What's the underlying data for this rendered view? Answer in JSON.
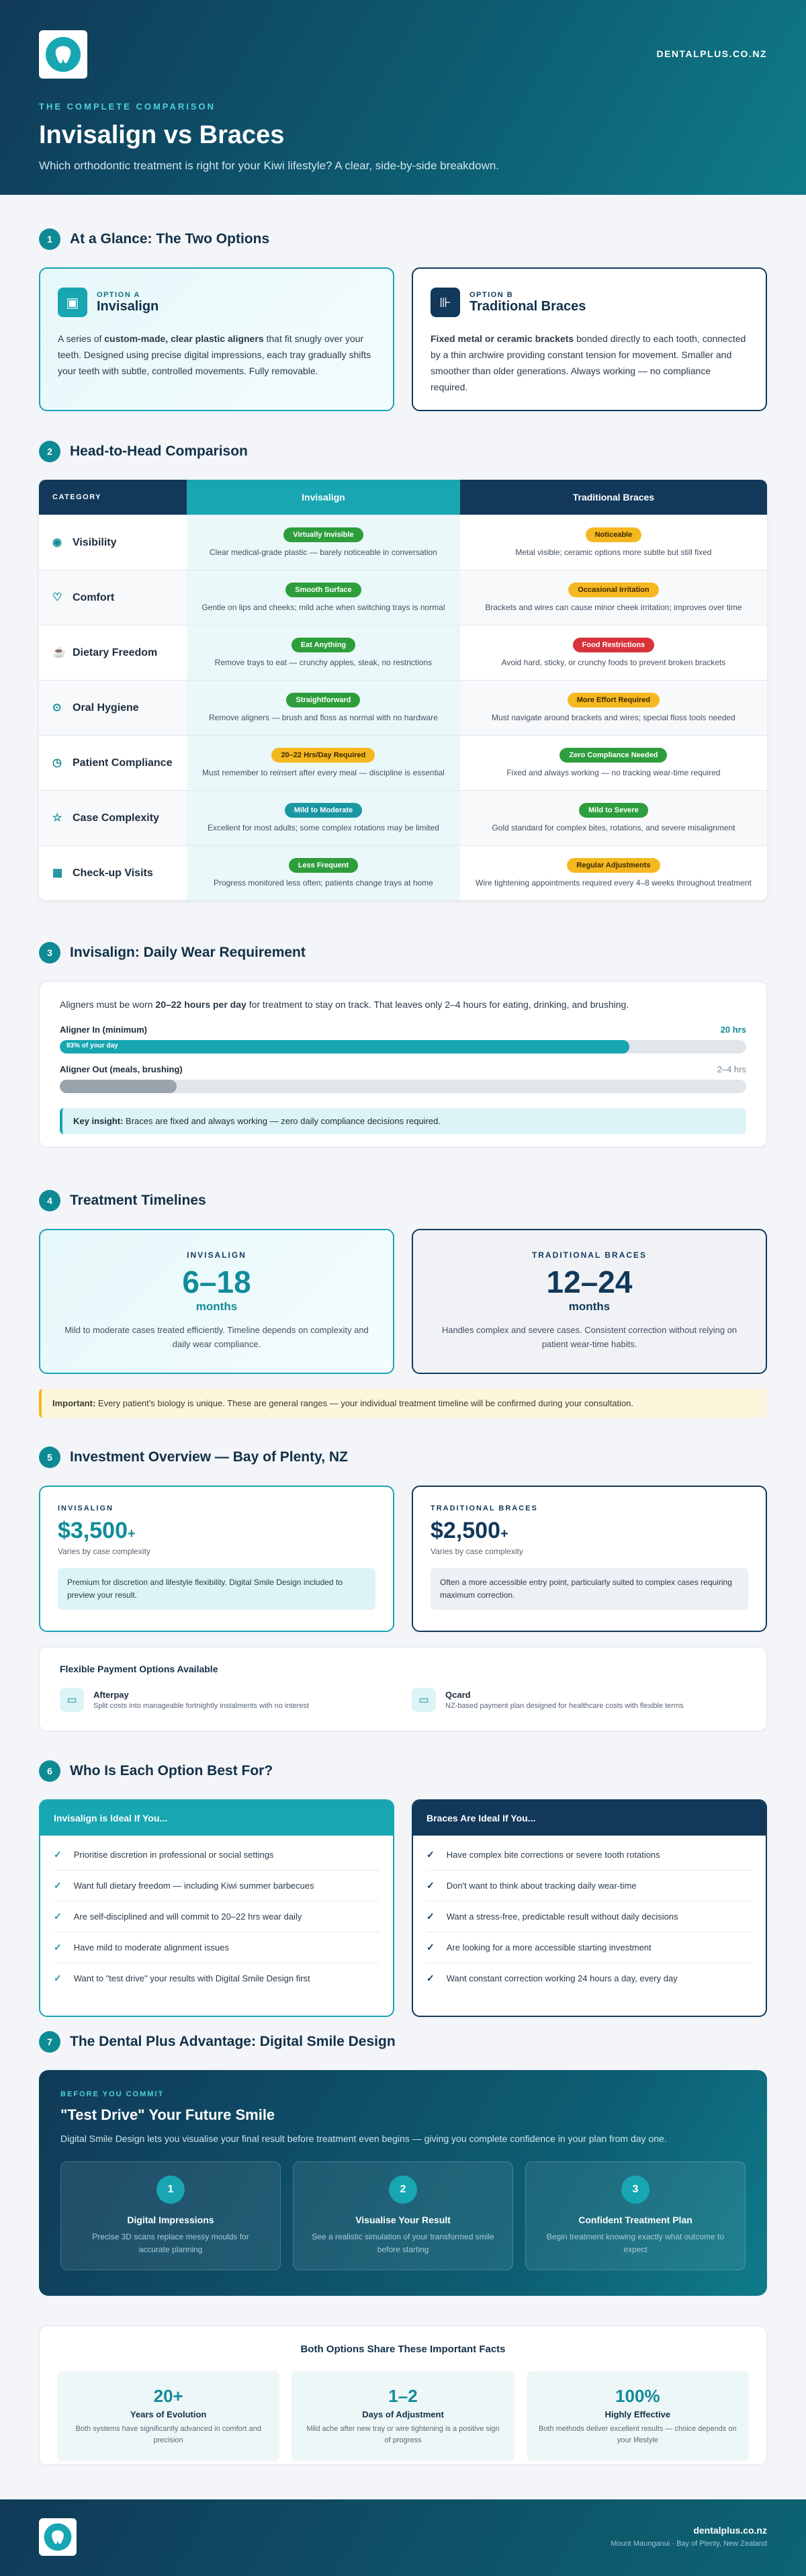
{
  "site": "DENTALPLUS.CO.NZ",
  "hero": {
    "eyebrow": "THE COMPLETE COMPARISON",
    "title": "Invisalign vs Braces",
    "subtitle": "Which orthodontic treatment is right for your Kiwi lifestyle? A clear, side-by-side breakdown."
  },
  "s1": {
    "num": "1",
    "title": "At a Glance: The Two Options",
    "a": {
      "opt": "OPTION A",
      "title": "Invisalign",
      "pre": "A series of ",
      "bold": "custom-made, clear plastic aligners",
      "post": " that fit snugly over your teeth. Designed using precise digital impressions, each tray gradually shifts your teeth with subtle, controlled movements. Fully removable."
    },
    "b": {
      "opt": "OPTION B",
      "title": "Traditional Braces",
      "bold": "Fixed metal or ceramic brackets",
      "post": " bonded directly to each tooth, connected by a thin archwire providing constant tension for movement. Smaller and smoother than older generations. Always working — no compliance required."
    }
  },
  "s2": {
    "num": "2",
    "title": "Head-to-Head Comparison",
    "h": [
      "CATEGORY",
      "Invisalign",
      "Traditional Braces"
    ],
    "rows": [
      {
        "label": "Visibility",
        "icon": "eye-icon",
        "a": {
          "pill": "Virtually Invisible",
          "c": "g",
          "t": "Clear medical-grade plastic — barely noticeable in conversation"
        },
        "b": {
          "pill": "Noticeable",
          "c": "y",
          "t": "Metal visible; ceramic options more subtle but still fixed"
        }
      },
      {
        "label": "Comfort",
        "icon": "heart-icon",
        "a": {
          "pill": "Smooth Surface",
          "c": "g",
          "t": "Gentle on lips and cheeks; mild ache when switching trays is normal"
        },
        "b": {
          "pill": "Occasional Irritation",
          "c": "y",
          "t": "Brackets and wires can cause minor cheek irritation; improves over time"
        }
      },
      {
        "label": "Dietary Freedom",
        "icon": "cup-icon",
        "a": {
          "pill": "Eat Anything",
          "c": "g",
          "t": "Remove trays to eat — crunchy apples, steak, no restrictions"
        },
        "b": {
          "pill": "Food Restrictions",
          "c": "r",
          "t": "Avoid hard, sticky, or crunchy foods to prevent broken brackets"
        }
      },
      {
        "label": "Oral Hygiene",
        "icon": "pin-icon",
        "a": {
          "pill": "Straightforward",
          "c": "g",
          "t": "Remove aligners — brush and floss as normal with no hardware"
        },
        "b": {
          "pill": "More Effort Required",
          "c": "y",
          "t": "Must navigate around brackets and wires; special floss tools needed"
        }
      },
      {
        "label": "Patient Compliance",
        "icon": "clock-icon",
        "a": {
          "pill": "20–22 Hrs/Day Required",
          "c": "y",
          "t": "Must remember to reinsert after every meal — discipline is essential"
        },
        "b": {
          "pill": "Zero Compliance Needed",
          "c": "g",
          "t": "Fixed and always working — no tracking wear-time required"
        }
      },
      {
        "label": "Case Complexity",
        "icon": "star-icon",
        "a": {
          "pill": "Mild to Moderate",
          "c": "t",
          "t": "Excellent for most adults; some complex rotations may be limited"
        },
        "b": {
          "pill": "Mild to Severe",
          "c": "g",
          "t": "Gold standard for complex bites, rotations, and severe misalignment"
        }
      },
      {
        "label": "Check-up Visits",
        "icon": "calendar-icon",
        "a": {
          "pill": "Less Frequent",
          "c": "g",
          "t": "Progress monitored less often; patients change trays at home"
        },
        "b": {
          "pill": "Regular Adjustments",
          "c": "y",
          "t": "Wire tightening appointments required every 4–8 weeks throughout treatment"
        }
      }
    ]
  },
  "s3": {
    "num": "3",
    "title": "Invisalign: Daily Wear Requirement",
    "intro_pre": "Aligners must be worn ",
    "intro_bold": "20–22 hours per day",
    "intro_post": " for treatment to stay on track. That leaves only 2–4 hours for eating, drinking, and brushing.",
    "in_label": "Aligner In (minimum)",
    "in_val": "20 hrs",
    "in_pct": 83,
    "in_text": "83% of your day",
    "out_label": "Aligner Out (meals, brushing)",
    "out_val": "2–4 hrs",
    "out_pct": 17,
    "ins_bold": "Key insight:",
    "ins_text": " Braces are fixed and always working — zero daily compliance decisions required."
  },
  "s4": {
    "num": "4",
    "title": "Treatment Timelines",
    "a": {
      "label": "INVISALIGN",
      "value": "6–18",
      "unit": "months",
      "text": "Mild to moderate cases treated efficiently. Timeline depends on complexity and daily wear compliance."
    },
    "b": {
      "label": "TRADITIONAL BRACES",
      "value": "12–24",
      "unit": "months",
      "text": "Handles complex and severe cases. Consistent correction without relying on patient wear-time habits."
    },
    "note_bold": "Important:",
    "note_text": " Every patient's biology is unique. These are general ranges — your individual treatment timeline will be confirmed during your consultation."
  },
  "s5": {
    "num": "5",
    "title": "Investment Overview — Bay of Plenty, NZ",
    "a": {
      "label": "INVISALIGN",
      "price": "$3,500",
      "plus": "+",
      "sub": "Varies by case complexity",
      "note": "Premium for discretion and lifestyle flexibility. Digital Smile Design included to preview your result."
    },
    "b": {
      "label": "TRADITIONAL BRACES",
      "price": "$2,500",
      "plus": "+",
      "sub": "Varies by case complexity",
      "note": "Often a more accessible entry point, particularly suited to complex cases requiring maximum correction."
    },
    "pay_title": "Flexible Payment Options Available",
    "pay": [
      {
        "name": "Afterpay",
        "text": "Split costs into manageable fortnightly instalments with no interest"
      },
      {
        "name": "Qcard",
        "text": "NZ-based payment plan designed for healthcare costs with flexible terms"
      }
    ]
  },
  "s6": {
    "num": "6",
    "title": "Who Is Each Option Best For?",
    "a": {
      "title": "Invisalign is Ideal If You...",
      "items": [
        "Prioritise discretion in professional or social settings",
        "Want full dietary freedom — including Kiwi summer barbecues",
        "Are self-disciplined and will commit to 20–22 hrs wear daily",
        "Have mild to moderate alignment issues",
        "Want to \"test drive\" your results with Digital Smile Design first"
      ]
    },
    "b": {
      "title": "Braces Are Ideal If You...",
      "items": [
        "Have complex bite corrections or severe tooth rotations",
        "Don't want to think about tracking daily wear-time",
        "Want a stress-free, predictable result without daily decisions",
        "Are looking for a more accessible starting investment",
        "Want constant correction working 24 hours a day, every day"
      ]
    }
  },
  "s7": {
    "num": "7",
    "title": "The Dental Plus Advantage: Digital Smile Design",
    "eyebrow": "BEFORE YOU COMMIT",
    "head": "\"Test Drive\" Your Future Smile",
    "text": "Digital Smile Design lets you visualise your final result before treatment even begins — giving you complete confidence in your plan from day one.",
    "steps": [
      {
        "n": "1",
        "t": "Digital Impressions",
        "d": "Precise 3D scans replace messy moulds for accurate planning"
      },
      {
        "n": "2",
        "t": "Visualise Your Result",
        "d": "See a realistic simulation of your transformed smile before starting"
      },
      {
        "n": "3",
        "t": "Confident Treatment Plan",
        "d": "Begin treatment knowing exactly what outcome to expect"
      }
    ]
  },
  "facts": {
    "title": "Both Options Share These Important Facts",
    "items": [
      {
        "v": "20+",
        "l": "Years of Evolution",
        "d": "Both systems have significantly advanced in comfort and precision"
      },
      {
        "v": "1–2",
        "l": "Days of Adjustment",
        "d": "Mild ache after new tray or wire tightening is a positive sign of progress"
      },
      {
        "v": "100%",
        "l": "Highly Effective",
        "d": "Both methods deliver excellent results — choice depends on your lifestyle"
      }
    ]
  },
  "footer": {
    "site": "dentalplus.co.nz",
    "loc": "Mount Maunganui · Bay of Plenty, New Zealand"
  },
  "colors": {
    "teal": "#17a6b2",
    "navy": "#12385a"
  }
}
